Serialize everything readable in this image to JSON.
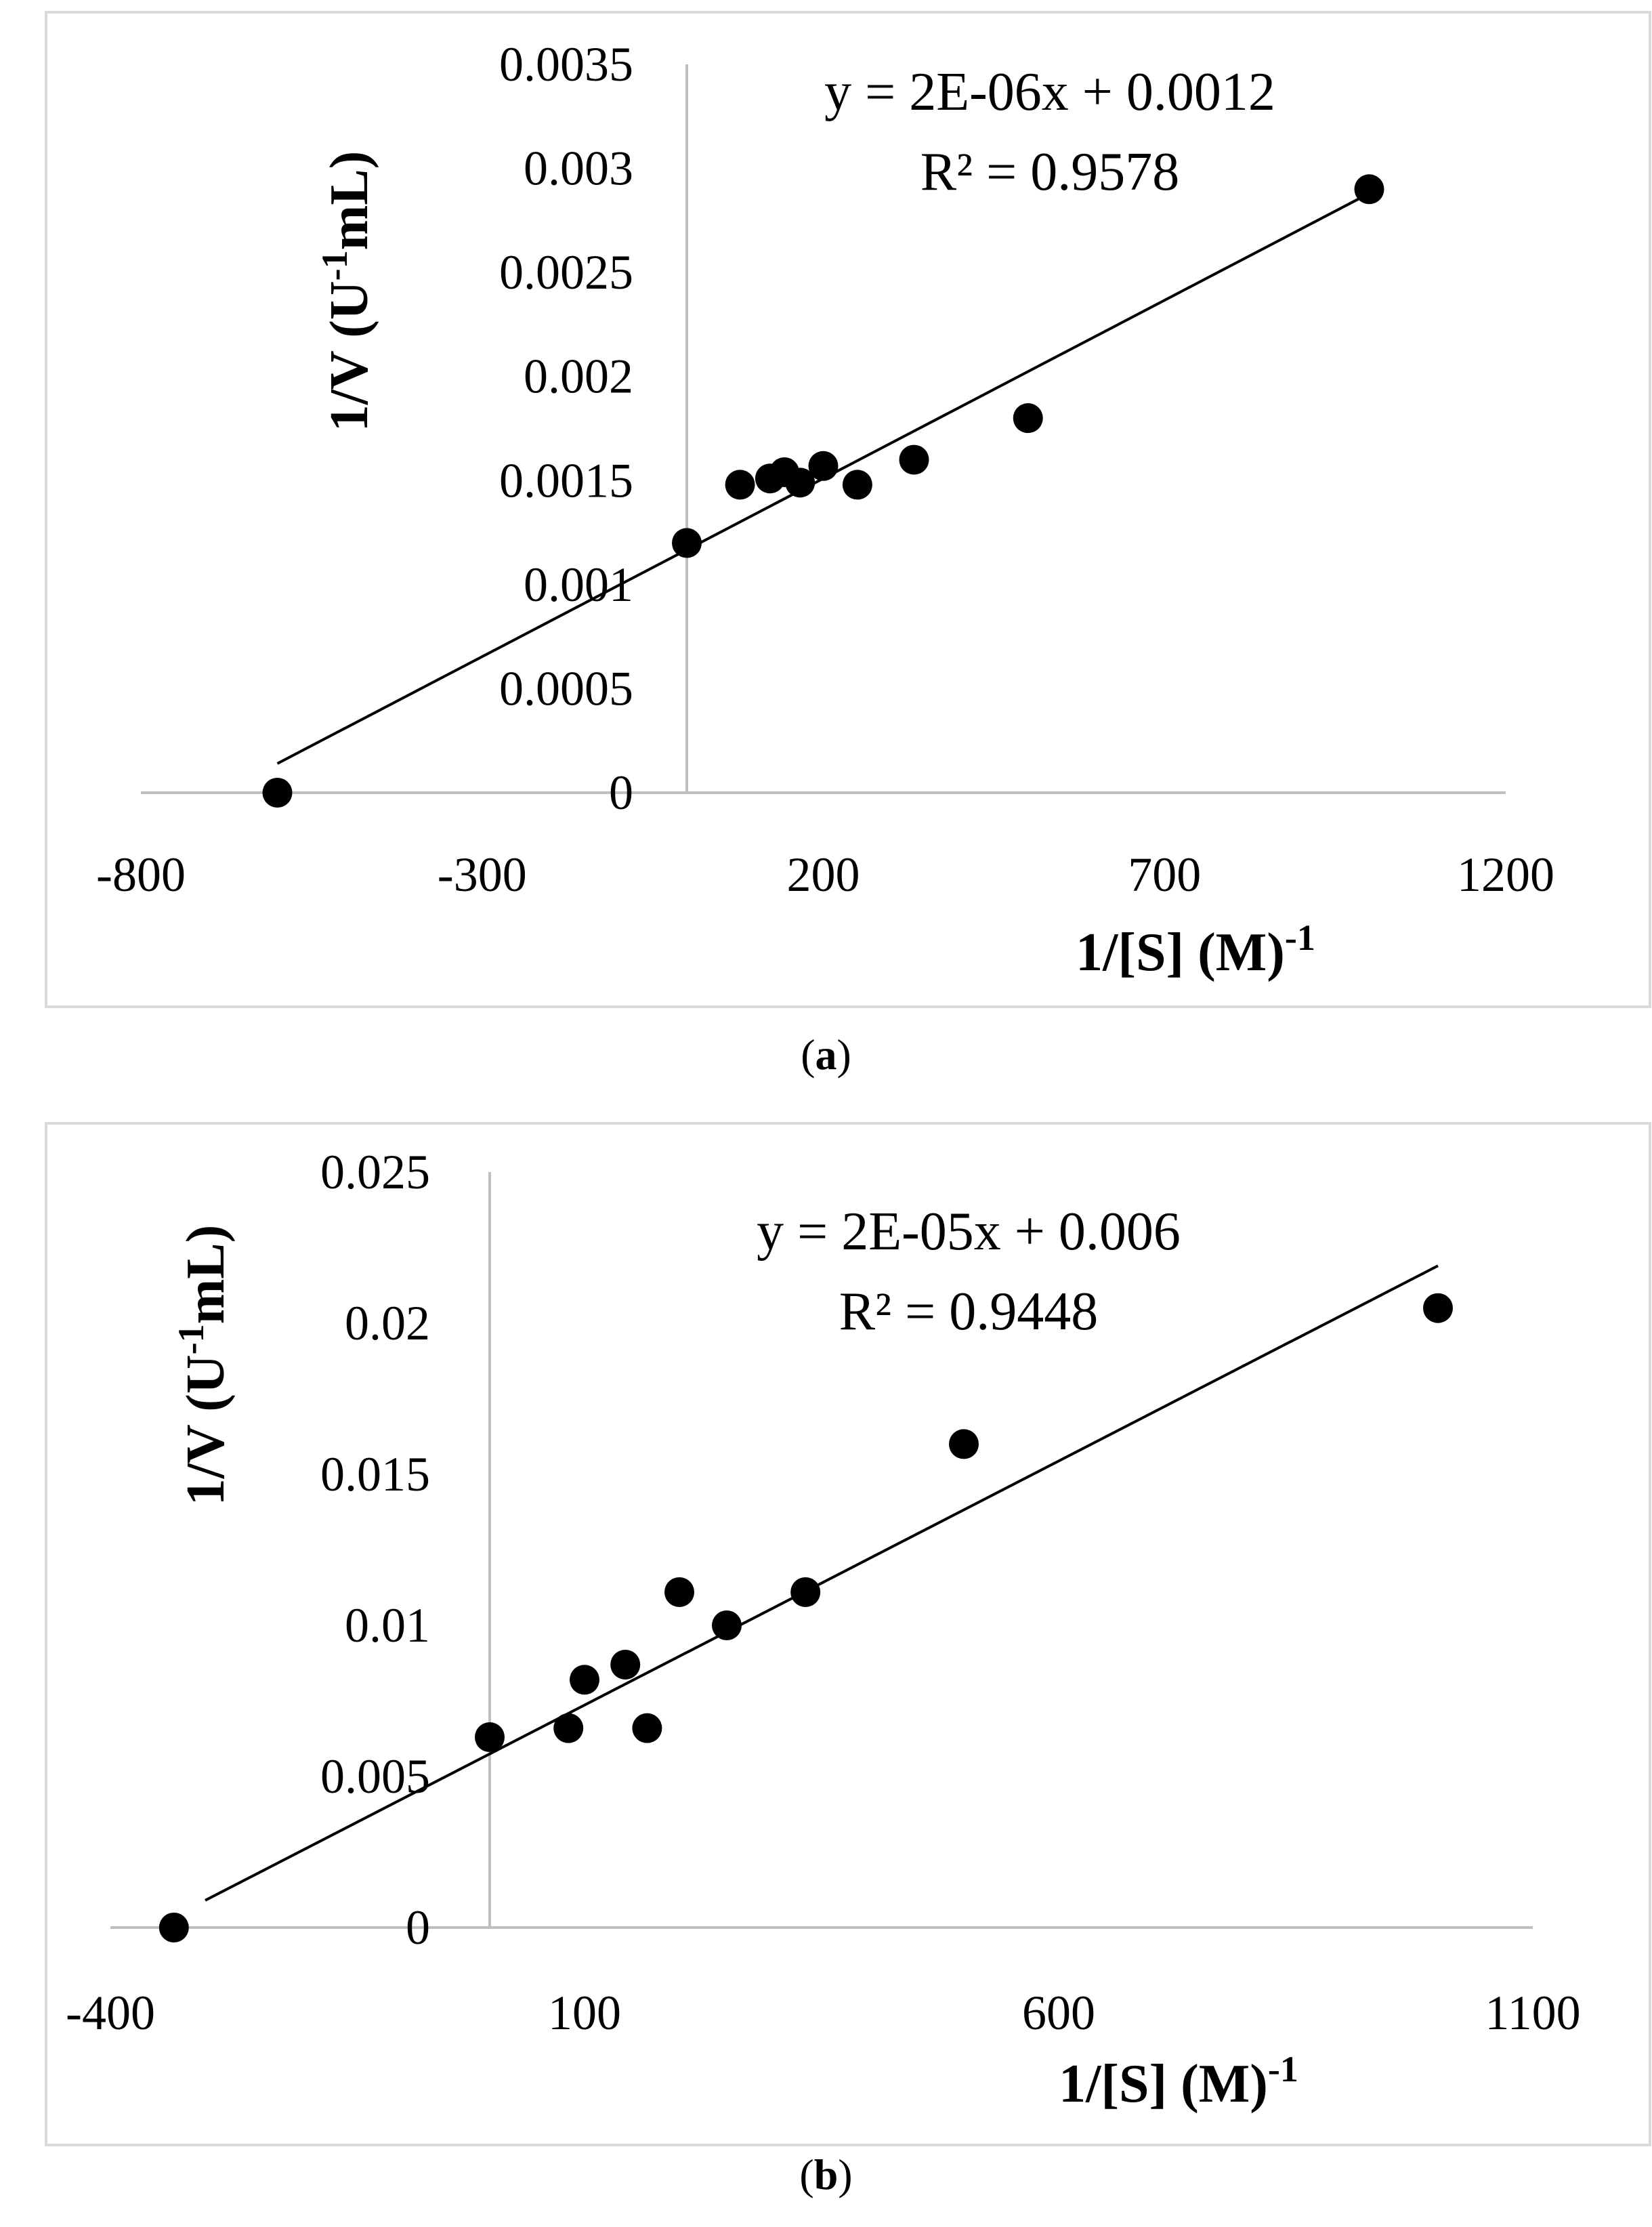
{
  "chart_data": [
    {
      "type": "scatter",
      "panel_label": "a",
      "xlabel": "1/[S] (M)",
      "xlabel_sup": "-1",
      "ylabel": "1/V (U",
      "ylabel_sup": "-1",
      "ylabel_tail": "mL)",
      "xlim": [
        -800,
        1200
      ],
      "ylim": [
        0,
        0.0035
      ],
      "xticks": [
        -800,
        -300,
        200,
        700,
        1200
      ],
      "xtick_labels": [
        "-800",
        "-300",
        "200",
        "700",
        "1200"
      ],
      "yticks": [
        0,
        0.0005,
        0.001,
        0.0015,
        0.002,
        0.0025,
        0.003,
        0.0035
      ],
      "ytick_labels": [
        "0",
        "0.0005",
        "0.001",
        "0.0015",
        "0.002",
        "0.0025",
        "0.003",
        "0.0035"
      ],
      "grid": false,
      "points": [
        {
          "x": -600,
          "y": 0
        },
        {
          "x": 0,
          "y": 0.0012
        },
        {
          "x": 78,
          "y": 0.00148
        },
        {
          "x": 122,
          "y": 0.00151
        },
        {
          "x": 143,
          "y": 0.00154
        },
        {
          "x": 166,
          "y": 0.00149
        },
        {
          "x": 200,
          "y": 0.00157
        },
        {
          "x": 250,
          "y": 0.00148
        },
        {
          "x": 333,
          "y": 0.0016
        },
        {
          "x": 500,
          "y": 0.0018
        },
        {
          "x": 1000,
          "y": 0.0029
        }
      ],
      "trendline": {
        "x0": -600,
        "y0": 0.00014,
        "x1": 1000,
        "y1": 0.00288
      },
      "equation": "y = 2E-06x + 0.0012",
      "r_squared": "R² = 0.9578"
    },
    {
      "type": "scatter",
      "panel_label": "b",
      "xlabel": "1/[S] (M)",
      "xlabel_sup": "-1",
      "ylabel": "1/V (U",
      "ylabel_sup": "-1",
      "ylabel_tail": "mL)",
      "xlim": [
        -400,
        1100
      ],
      "ylim": [
        0,
        0.025
      ],
      "xticks": [
        -400,
        100,
        600,
        1100
      ],
      "xtick_labels": [
        "-400",
        "100",
        "600",
        "1100"
      ],
      "yticks": [
        0,
        0.005,
        0.01,
        0.015,
        0.02,
        0.025
      ],
      "ytick_labels": [
        "0",
        "0.005",
        "0.01",
        "0.015",
        "0.02",
        "0.025"
      ],
      "grid": false,
      "points": [
        {
          "x": -333,
          "y": 0
        },
        {
          "x": 0,
          "y": 0.0063
        },
        {
          "x": 83,
          "y": 0.0066
        },
        {
          "x": 100,
          "y": 0.0082
        },
        {
          "x": 143,
          "y": 0.0087
        },
        {
          "x": 166,
          "y": 0.0066
        },
        {
          "x": 200,
          "y": 0.0111
        },
        {
          "x": 250,
          "y": 0.01
        },
        {
          "x": 333,
          "y": 0.0111
        },
        {
          "x": 500,
          "y": 0.016
        },
        {
          "x": 1000,
          "y": 0.0205
        }
      ],
      "trendline": {
        "x0": -300,
        "y0": 0.0009,
        "x1": 1000,
        "y1": 0.0219
      },
      "equation": "y = 2E-05x + 0.006",
      "r_squared": "R² = 0.9448"
    }
  ],
  "colors": {
    "frame": "#d9d9d9",
    "axis": "#bfbfbf",
    "marker": "#000000",
    "trendline": "#000000",
    "text": "#000000"
  }
}
